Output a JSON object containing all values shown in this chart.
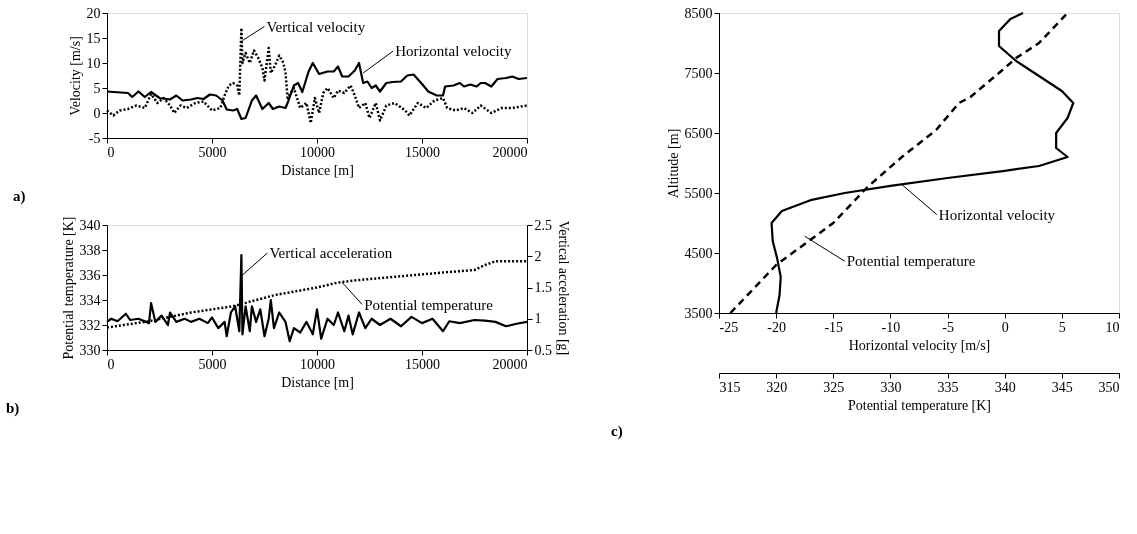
{
  "chart_data": [
    {
      "type": "line",
      "xlabel": "Distance [m]",
      "ylabel": "Velocity [m/s]",
      "xlim": [
        0,
        20000
      ],
      "xticks": [
        0,
        5000,
        10000,
        15000,
        20000
      ],
      "ylim": [
        -5,
        20
      ],
      "yticks": [
        -5,
        0,
        5,
        10,
        15,
        20
      ],
      "series": [
        {
          "color": "#000000",
          "line_style": "dotted",
          "x": [
            0,
            300,
            600,
            1000,
            1400,
            1800,
            2100,
            2400,
            2700,
            3000,
            3200,
            3500,
            3800,
            4200,
            4600,
            5000,
            5400,
            5600,
            5800,
            6000,
            6200,
            6300,
            6400,
            6450,
            6600,
            6800,
            7000,
            7200,
            7400,
            7500,
            7700,
            7800,
            8000,
            8200,
            8400,
            8500,
            8600,
            8900,
            9200,
            9500,
            9700,
            9900,
            10100,
            10300,
            10500,
            10800,
            11000,
            11300,
            11600,
            11800,
            12000,
            12300,
            12500,
            12800,
            13000,
            13300,
            13700,
            14200,
            14400,
            14800,
            15200,
            15600,
            16000,
            16200,
            16600,
            17000,
            17400,
            17800,
            18300,
            18800,
            19300,
            20000
          ],
          "values": [
            0.5,
            -0.5,
            0.5,
            0.8,
            1.5,
            1,
            3.8,
            2,
            3,
            1.5,
            0,
            1.5,
            1,
            2,
            2.3,
            0.5,
            1,
            3.5,
            5.5,
            6,
            5.5,
            3.5,
            17,
            10,
            12,
            10,
            12.5,
            11,
            9,
            6.5,
            13,
            8,
            9.5,
            11.5,
            10,
            8,
            3,
            5,
            1,
            2,
            -2,
            3,
            0,
            4,
            5,
            3,
            4.5,
            4,
            5.5,
            3.5,
            1,
            2,
            -1,
            2,
            -1.5,
            1.5,
            2,
            0.5,
            -0.5,
            2,
            1,
            2.5,
            3,
            1,
            0.5,
            1,
            0,
            1.5,
            0,
            1,
            1,
            1.5
          ]
        },
        {
          "color": "#000000",
          "line_style": "solid",
          "x": [
            0,
            1000,
            1200,
            1500,
            1800,
            2100,
            2500,
            3000,
            3300,
            3600,
            4000,
            4300,
            4600,
            4900,
            5200,
            5500,
            5700,
            6000,
            6200,
            6400,
            6600,
            6900,
            7100,
            7400,
            7700,
            7900,
            8200,
            8500,
            8600,
            8900,
            9100,
            9300,
            9600,
            9800,
            10100,
            10500,
            10800,
            11000,
            11200,
            11500,
            11800,
            12000,
            12200,
            12400,
            12600,
            12800,
            13000,
            13300,
            13600,
            14000,
            14300,
            14600,
            15000,
            15300,
            15700,
            16000,
            16100,
            16500,
            16800,
            17000,
            17300,
            17600,
            17800,
            18000,
            18300,
            18600,
            19000,
            19300,
            19600,
            20000
          ],
          "values": [
            4.3,
            4,
            3.2,
            4.3,
            3.2,
            4.2,
            3,
            2.7,
            3.5,
            2.5,
            2.7,
            3,
            2.8,
            3.7,
            3.5,
            2.5,
            0.7,
            0.5,
            0.8,
            -1.2,
            -1,
            2.5,
            3.5,
            0.8,
            2,
            0.8,
            1.3,
            1,
            2,
            5.5,
            6,
            4.2,
            8.3,
            10,
            7.8,
            8.3,
            8.3,
            9.3,
            7.3,
            7.3,
            8.5,
            10,
            6,
            6.3,
            5,
            5.5,
            4.3,
            6,
            6.2,
            6.3,
            7.5,
            7.7,
            5.8,
            4.3,
            3.5,
            3.5,
            5.3,
            5.5,
            6,
            5.3,
            5.7,
            5.3,
            6,
            6,
            5.3,
            6.8,
            7,
            7.3,
            6.8,
            7
          ]
        }
      ],
      "annotations": [
        {
          "text": "Vertical velocity",
          "x": 6450,
          "y": 14.5
        },
        {
          "text": "Horizontal velocity",
          "x": 12200,
          "y": 8
        },
        "a)"
      ]
    },
    {
      "type": "line",
      "xlabel": "Distance [m]",
      "ylabel": "Potential temperature [K]",
      "y2label": "Vertical acceleration [g]",
      "xlim": [
        0,
        20000
      ],
      "xticks": [
        0,
        5000,
        10000,
        15000,
        20000
      ],
      "ylim": [
        330,
        340
      ],
      "yticks": [
        330,
        332,
        334,
        336,
        338,
        340
      ],
      "y2lim": [
        0.5,
        2.5
      ],
      "y2ticks": [
        0.5,
        1,
        1.5,
        2,
        2.5
      ],
      "series": [
        {
          "color": "#000000",
          "line_style": "dotted",
          "x": [
            0,
            2000,
            4000,
            6000,
            8000,
            10000,
            11000,
            12000,
            14000,
            16000,
            17500,
            18000,
            18500,
            20000
          ],
          "values": [
            331.8,
            332.3,
            333,
            333.5,
            334.4,
            335,
            335.4,
            335.6,
            335.9,
            336.2,
            336.4,
            336.8,
            337.1,
            337.1
          ]
        },
        {
          "color": "#000000",
          "line_style": "solid",
          "axis": "y2",
          "x": [
            0,
            200,
            500,
            900,
            1100,
            1500,
            2000,
            2100,
            2300,
            2600,
            2900,
            3000,
            3300,
            3700,
            4000,
            4400,
            4800,
            5000,
            5300,
            5600,
            5700,
            5900,
            6100,
            6300,
            6400,
            6450,
            6600,
            6800,
            6900,
            7100,
            7300,
            7500,
            7700,
            7800,
            7950,
            8200,
            8500,
            8700,
            8900,
            9200,
            9500,
            9800,
            10000,
            10200,
            10500,
            10800,
            11000,
            11300,
            11500,
            11700,
            12000,
            12300,
            12600,
            13000,
            13500,
            14000,
            14500,
            15000,
            15500,
            16000,
            16300,
            16800,
            17500,
            18000,
            18500,
            19000,
            19500,
            20000
          ],
          "values": [
            0.95,
            1.0,
            0.96,
            1.08,
            0.98,
            1.0,
            0.93,
            1.25,
            0.95,
            1.05,
            0.9,
            1.1,
            0.95,
            1.0,
            0.95,
            1.0,
            0.93,
            1.02,
            0.85,
            0.95,
            0.72,
            1.1,
            1.2,
            0.8,
            2.02,
            0.75,
            1.2,
            0.8,
            1.2,
            0.95,
            1.15,
            0.72,
            1.0,
            1.3,
            0.85,
            1.1,
            0.95,
            0.64,
            0.85,
            0.78,
            0.95,
            0.75,
            1.15,
            0.68,
            1.0,
            0.9,
            1.1,
            0.8,
            1.05,
            0.75,
            1.1,
            0.85,
            1.0,
            0.9,
            1.0,
            0.88,
            1.03,
            0.93,
            1.0,
            0.8,
            0.96,
            0.93,
            0.98,
            0.97,
            0.95,
            0.88,
            0.92,
            0.95
          ]
        }
      ],
      "annotations": [
        {
          "text": "Vertical acceleration",
          "x": 6450,
          "y": 336
        },
        {
          "text": "Potential temperature",
          "x": 11200,
          "y": 335.4
        },
        "b)"
      ]
    },
    {
      "type": "line",
      "xlabel": "Horizontal velocity [m/s]",
      "x2label": "Potential temperature [K]",
      "ylabel": "Altitude [m]",
      "xlim": [
        -25,
        10
      ],
      "xticks": [
        -25,
        -20,
        -15,
        -10,
        -5,
        0,
        5,
        10
      ],
      "x2lim": [
        315,
        350
      ],
      "x2ticks": [
        315,
        320,
        325,
        330,
        335,
        340,
        345,
        350
      ],
      "ylim": [
        3500,
        8500
      ],
      "yticks": [
        3500,
        4500,
        5500,
        6500,
        7500,
        8500
      ],
      "series": [
        {
          "color": "#000000",
          "line_style": "solid",
          "x": [
            -20,
            -19.7,
            -19.6,
            -19.9,
            -20.3,
            -20.4,
            -19.5,
            -17,
            -14,
            -10,
            -5,
            0,
            3,
            5.5,
            4.5,
            4.5,
            5.5,
            6,
            5,
            3,
            1,
            -0.5,
            -0.5,
            0.5,
            1.6
          ],
          "values": [
            3500,
            3800,
            4100,
            4400,
            4700,
            5000,
            5200,
            5380,
            5500,
            5620,
            5750,
            5870,
            5950,
            6100,
            6250,
            6500,
            6750,
            7000,
            7200,
            7450,
            7700,
            7950,
            8200,
            8400,
            8500
          ]
        },
        {
          "color": "#000000",
          "line_style": "dashed",
          "axis": "x2",
          "x": [
            316,
            320,
            325,
            328,
            331,
            334,
            336,
            337,
            339.5,
            341,
            343,
            345.5
          ],
          "values": [
            3500,
            4300,
            5000,
            5600,
            6100,
            6550,
            7000,
            7100,
            7500,
            7750,
            8000,
            8500
          ]
        }
      ],
      "annotations": [
        {
          "text": "Horizontal velocity",
          "x": -9,
          "y": 5640
        },
        {
          "text": "Potential temperature",
          "x": -17.5,
          "y": 4780
        },
        "c)"
      ]
    }
  ]
}
